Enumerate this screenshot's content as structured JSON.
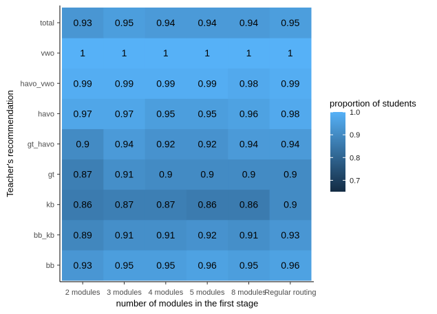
{
  "chart_data": {
    "type": "heatmap",
    "xlabel": "number of modules in the first stage",
    "ylabel": "Teacher's recommendation",
    "x_categories": [
      "2 modules",
      "3 modules",
      "4 modules",
      "5 modules",
      "8 modules",
      "Regular routing"
    ],
    "y_categories": [
      "bb",
      "bb_kb",
      "kb",
      "gt",
      "gt_havo",
      "havo",
      "havo_vwo",
      "vwo",
      "total"
    ],
    "values": [
      [
        0.93,
        0.95,
        0.95,
        0.96,
        0.95,
        0.96
      ],
      [
        0.89,
        0.91,
        0.91,
        0.92,
        0.91,
        0.93
      ],
      [
        0.86,
        0.87,
        0.87,
        0.86,
        0.86,
        0.9
      ],
      [
        0.87,
        0.91,
        0.9,
        0.9,
        0.9,
        0.9
      ],
      [
        0.9,
        0.94,
        0.92,
        0.92,
        0.94,
        0.94
      ],
      [
        0.97,
        0.97,
        0.95,
        0.95,
        0.96,
        0.98
      ],
      [
        0.99,
        0.99,
        0.99,
        0.99,
        0.98,
        0.99
      ],
      [
        1,
        1,
        1,
        1,
        1,
        1
      ],
      [
        0.93,
        0.95,
        0.94,
        0.94,
        0.94,
        0.95
      ]
    ],
    "legend": {
      "title": "proportion of students",
      "breaks": [
        "1.0",
        "0.9",
        "0.8",
        "0.7"
      ],
      "break_values": [
        1.0,
        0.9,
        0.8,
        0.7
      ],
      "range": [
        0.65,
        1.0
      ],
      "low_color": "#132B43",
      "high_color": "#56B1F7",
      "position": "right"
    },
    "grid": false
  }
}
